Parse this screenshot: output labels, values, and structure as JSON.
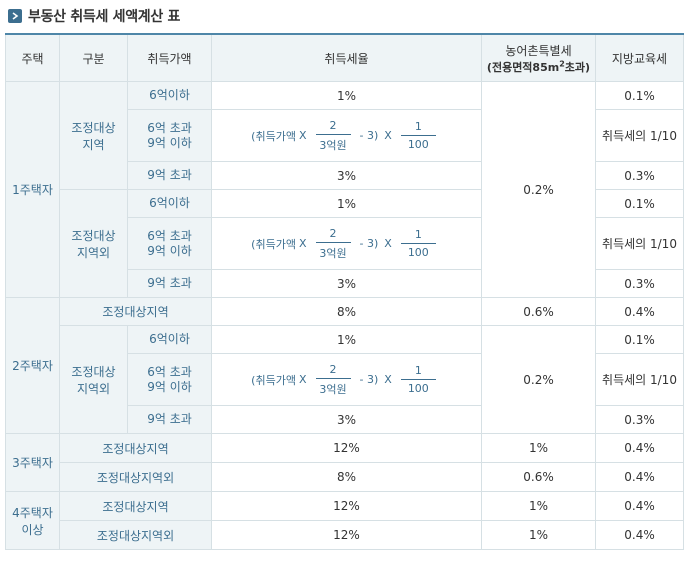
{
  "title": "부동산 취득세 세액계산 표",
  "headers": {
    "house": "주택",
    "category": "구분",
    "price": "취득가액",
    "rate": "취득세율",
    "farm": "농어촌특별세",
    "farm_sub_a": "(전용면적85m",
    "farm_sub_sup": "2",
    "farm_sub_b": "초과)",
    "local": "지방교육세"
  },
  "formula": {
    "open": "(취득가액",
    "times": "X",
    "num1": "2",
    "den1": "3억원",
    "minus": "- 3)",
    "num2": "1",
    "den2": "100"
  },
  "one_house": {
    "label": "1주택자",
    "adjusted": {
      "label_l1": "조정대상",
      "label_l2": "지역",
      "rows": [
        {
          "price": "6억이하",
          "rate": "1%",
          "local": "0.1%"
        },
        {
          "price_l1": "6억 초과",
          "price_l2": "9억 이하",
          "local": "취득세의 1/10"
        },
        {
          "price": "9억 초과",
          "rate": "3%",
          "local": "0.3%"
        }
      ]
    },
    "non_adjusted": {
      "label_l1": "조정대상",
      "label_l2": "지역외",
      "rows": [
        {
          "price": "6억이하",
          "rate": "1%",
          "local": "0.1%"
        },
        {
          "price_l1": "6억 초과",
          "price_l2": "9억 이하",
          "local": "취득세의 1/10"
        },
        {
          "price": "9억 초과",
          "rate": "3%",
          "local": "0.3%"
        }
      ]
    },
    "farm": "0.2%"
  },
  "two_house": {
    "label": "2주택자",
    "adjusted": {
      "label": "조정대상지역",
      "rate": "8%",
      "farm": "0.6%",
      "local": "0.4%"
    },
    "non_adjusted": {
      "label_l1": "조정대상",
      "label_l2": "지역외",
      "rows": [
        {
          "price": "6억이하",
          "rate": "1%",
          "local": "0.1%"
        },
        {
          "price_l1": "6억 초과",
          "price_l2": "9억 이하",
          "local": "취득세의 1/10"
        },
        {
          "price": "9억 초과",
          "rate": "3%",
          "local": "0.3%"
        }
      ],
      "farm": "0.2%"
    }
  },
  "three_house": {
    "label": "3주택자",
    "adjusted": {
      "label": "조정대상지역",
      "rate": "12%",
      "farm": "1%",
      "local": "0.4%"
    },
    "non_adjusted": {
      "label": "조정대상지역외",
      "rate": "8%",
      "farm": "0.6%",
      "local": "0.4%"
    }
  },
  "four_house": {
    "label_l1": "4주택자",
    "label_l2": "이상",
    "adjusted": {
      "label": "조정대상지역",
      "rate": "12%",
      "farm": "1%",
      "local": "0.4%"
    },
    "non_adjusted": {
      "label": "조정대상지역외",
      "rate": "12%",
      "farm": "1%",
      "local": "0.4%"
    }
  }
}
